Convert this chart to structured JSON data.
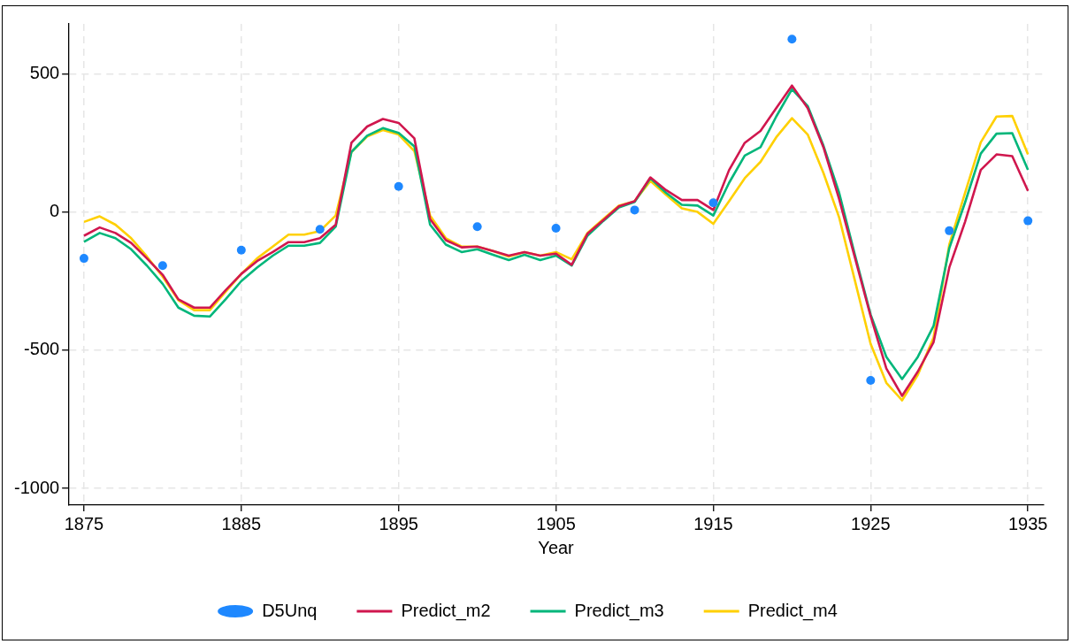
{
  "chart_data": {
    "type": "line",
    "xlabel": "Year",
    "xlim": [
      1874,
      1936
    ],
    "xticks": [
      1875,
      1885,
      1895,
      1905,
      1915,
      1925,
      1935
    ],
    "ylim": [
      -1060,
      680
    ],
    "yticks": [
      -1000,
      -500,
      0,
      500
    ],
    "grid": true,
    "legend": "bottom",
    "line_style": "solid",
    "series": [
      {
        "name": "D5Unq",
        "type": "scatter",
        "marker": "circle",
        "color": "#1e88ff",
        "x": [
          1875,
          1880,
          1885,
          1890,
          1895,
          1900,
          1905,
          1910,
          1915,
          1920,
          1925,
          1930,
          1935
        ],
        "values": [
          -168,
          -194,
          -138,
          -63,
          92,
          -53,
          -59,
          7,
          33,
          625,
          -609,
          -68,
          -32
        ]
      },
      {
        "name": "Predict_m2",
        "color": "#d0174e",
        "x": [
          1875,
          1876,
          1877,
          1878,
          1879,
          1880,
          1881,
          1882,
          1883,
          1884,
          1885,
          1886,
          1887,
          1888,
          1889,
          1890,
          1891,
          1892,
          1893,
          1894,
          1895,
          1896,
          1897,
          1898,
          1899,
          1900,
          1901,
          1902,
          1903,
          1904,
          1905,
          1906,
          1907,
          1908,
          1909,
          1910,
          1911,
          1912,
          1913,
          1914,
          1915,
          1916,
          1917,
          1918,
          1919,
          1920,
          1921,
          1922,
          1923,
          1924,
          1925,
          1926,
          1927,
          1928,
          1929,
          1930,
          1931,
          1932,
          1933,
          1934,
          1935
        ],
        "values": [
          -86,
          -56,
          -76,
          -112,
          -168,
          -227,
          -316,
          -346,
          -346,
          -283,
          -224,
          -178,
          -145,
          -109,
          -109,
          -95,
          -46,
          250,
          309,
          336,
          322,
          266,
          -26,
          -102,
          -128,
          -125,
          -141,
          -158,
          -145,
          -158,
          -151,
          -191,
          -79,
          -30,
          20,
          39,
          125,
          79,
          43,
          43,
          7,
          151,
          250,
          293,
          375,
          457,
          375,
          234,
          46,
          -165,
          -377,
          -566,
          -665,
          -577,
          -471,
          -201,
          -36,
          152,
          208,
          202,
          76
        ]
      },
      {
        "name": "Predict_m3",
        "color": "#00b67a",
        "x": [
          1875,
          1876,
          1877,
          1878,
          1879,
          1880,
          1881,
          1882,
          1883,
          1884,
          1885,
          1886,
          1887,
          1888,
          1889,
          1890,
          1891,
          1892,
          1893,
          1894,
          1895,
          1896,
          1897,
          1898,
          1899,
          1900,
          1901,
          1902,
          1903,
          1904,
          1905,
          1906,
          1907,
          1908,
          1909,
          1910,
          1911,
          1912,
          1913,
          1914,
          1915,
          1916,
          1917,
          1918,
          1919,
          1920,
          1921,
          1922,
          1923,
          1924,
          1925,
          1926,
          1927,
          1928,
          1929,
          1930,
          1931,
          1932,
          1933,
          1934,
          1935
        ],
        "values": [
          -108,
          -76,
          -95,
          -135,
          -194,
          -260,
          -346,
          -375,
          -378,
          -316,
          -250,
          -201,
          -158,
          -122,
          -122,
          -112,
          -53,
          217,
          276,
          303,
          286,
          237,
          -46,
          -118,
          -145,
          -135,
          -155,
          -174,
          -155,
          -174,
          -158,
          -194,
          -86,
          -33,
          16,
          36,
          122,
          69,
          26,
          23,
          -13,
          105,
          204,
          234,
          345,
          444,
          383,
          240,
          69,
          -155,
          -371,
          -524,
          -604,
          -524,
          -412,
          -131,
          34,
          211,
          283,
          285,
          152
        ]
      },
      {
        "name": "Predict_m4",
        "color": "#ffd000",
        "x": [
          1875,
          1876,
          1877,
          1878,
          1879,
          1880,
          1881,
          1882,
          1883,
          1884,
          1885,
          1886,
          1887,
          1888,
          1889,
          1890,
          1891,
          1892,
          1893,
          1894,
          1895,
          1896,
          1897,
          1898,
          1899,
          1900,
          1901,
          1902,
          1903,
          1904,
          1905,
          1906,
          1907,
          1908,
          1909,
          1910,
          1911,
          1912,
          1913,
          1914,
          1915,
          1916,
          1917,
          1918,
          1919,
          1920,
          1921,
          1922,
          1923,
          1924,
          1925,
          1926,
          1927,
          1928,
          1929,
          1930,
          1931,
          1932,
          1933,
          1934,
          1935
        ],
        "values": [
          -36,
          -16,
          -46,
          -95,
          -161,
          -234,
          -319,
          -355,
          -355,
          -289,
          -224,
          -168,
          -125,
          -82,
          -82,
          -69,
          -13,
          217,
          273,
          296,
          280,
          220,
          -13,
          -95,
          -125,
          -125,
          -141,
          -161,
          -145,
          -158,
          -145,
          -171,
          -76,
          -26,
          23,
          39,
          112,
          62,
          13,
          0,
          -43,
          39,
          122,
          181,
          270,
          339,
          280,
          141,
          -20,
          -248,
          -477,
          -618,
          -681,
          -589,
          -454,
          -118,
          69,
          252,
          345,
          347,
          208
        ]
      }
    ]
  }
}
